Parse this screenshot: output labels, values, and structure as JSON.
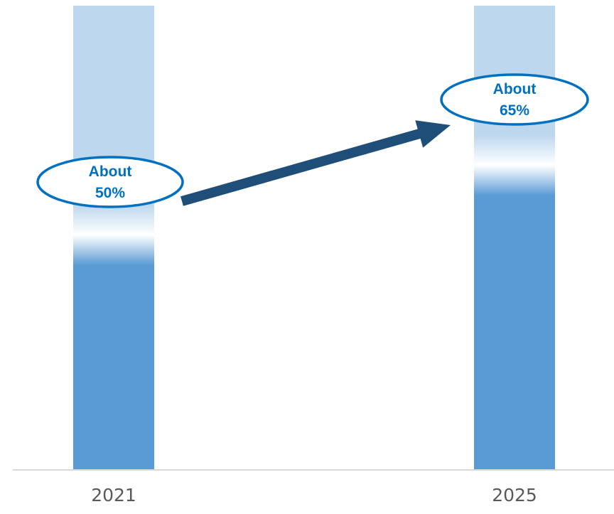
{
  "chart_data": {
    "type": "bar",
    "categories": [
      "2021",
      "2025"
    ],
    "values": [
      50,
      65
    ],
    "ylim": [
      0,
      100
    ],
    "annotations": [
      {
        "category": "2021",
        "line1": "About",
        "line2": "50%"
      },
      {
        "category": "2025",
        "line1": "About",
        "line2": "65%"
      }
    ],
    "arrow": {
      "from": "2021",
      "to": "2025"
    },
    "grid": false,
    "legend": "none"
  },
  "colors": {
    "bar_fill": "#5b9bd5",
    "bar_background": "#bdd7ee",
    "axis_line": "#d9d9d9",
    "annotation_border": "#0070c0",
    "annotation_text": "#0070c0",
    "arrow": "#1f4e79",
    "tick_label": "#595959"
  }
}
